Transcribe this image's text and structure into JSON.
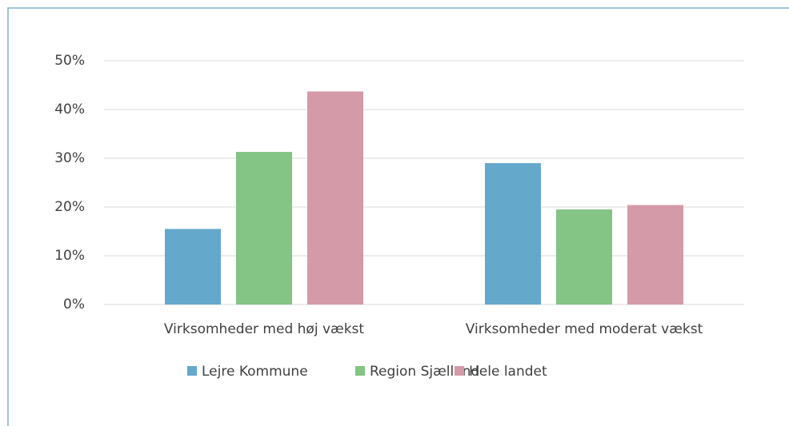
{
  "chart_data": {
    "type": "bar",
    "categories": [
      "Virksomheder med høj vækst",
      "Virksomheder med moderat vækst"
    ],
    "series": [
      {
        "name": "Lejre Kommune",
        "color": "#64a8cb",
        "values": [
          15.5,
          29.0
        ]
      },
      {
        "name": "Region Sjælland",
        "color": "#84c484",
        "values": [
          31.3,
          19.5
        ]
      },
      {
        "name": "Hele landet",
        "color": "#d59aa8",
        "values": [
          43.7,
          20.4
        ]
      }
    ],
    "ylim": [
      0,
      50
    ],
    "yticks": [
      {
        "value": 0,
        "label": "0%"
      },
      {
        "value": 10,
        "label": "10%"
      },
      {
        "value": 20,
        "label": "20%"
      },
      {
        "value": 30,
        "label": "30%"
      },
      {
        "value": 40,
        "label": "40%"
      },
      {
        "value": 50,
        "label": "50%"
      }
    ],
    "grid": true,
    "legend": "bottom"
  }
}
